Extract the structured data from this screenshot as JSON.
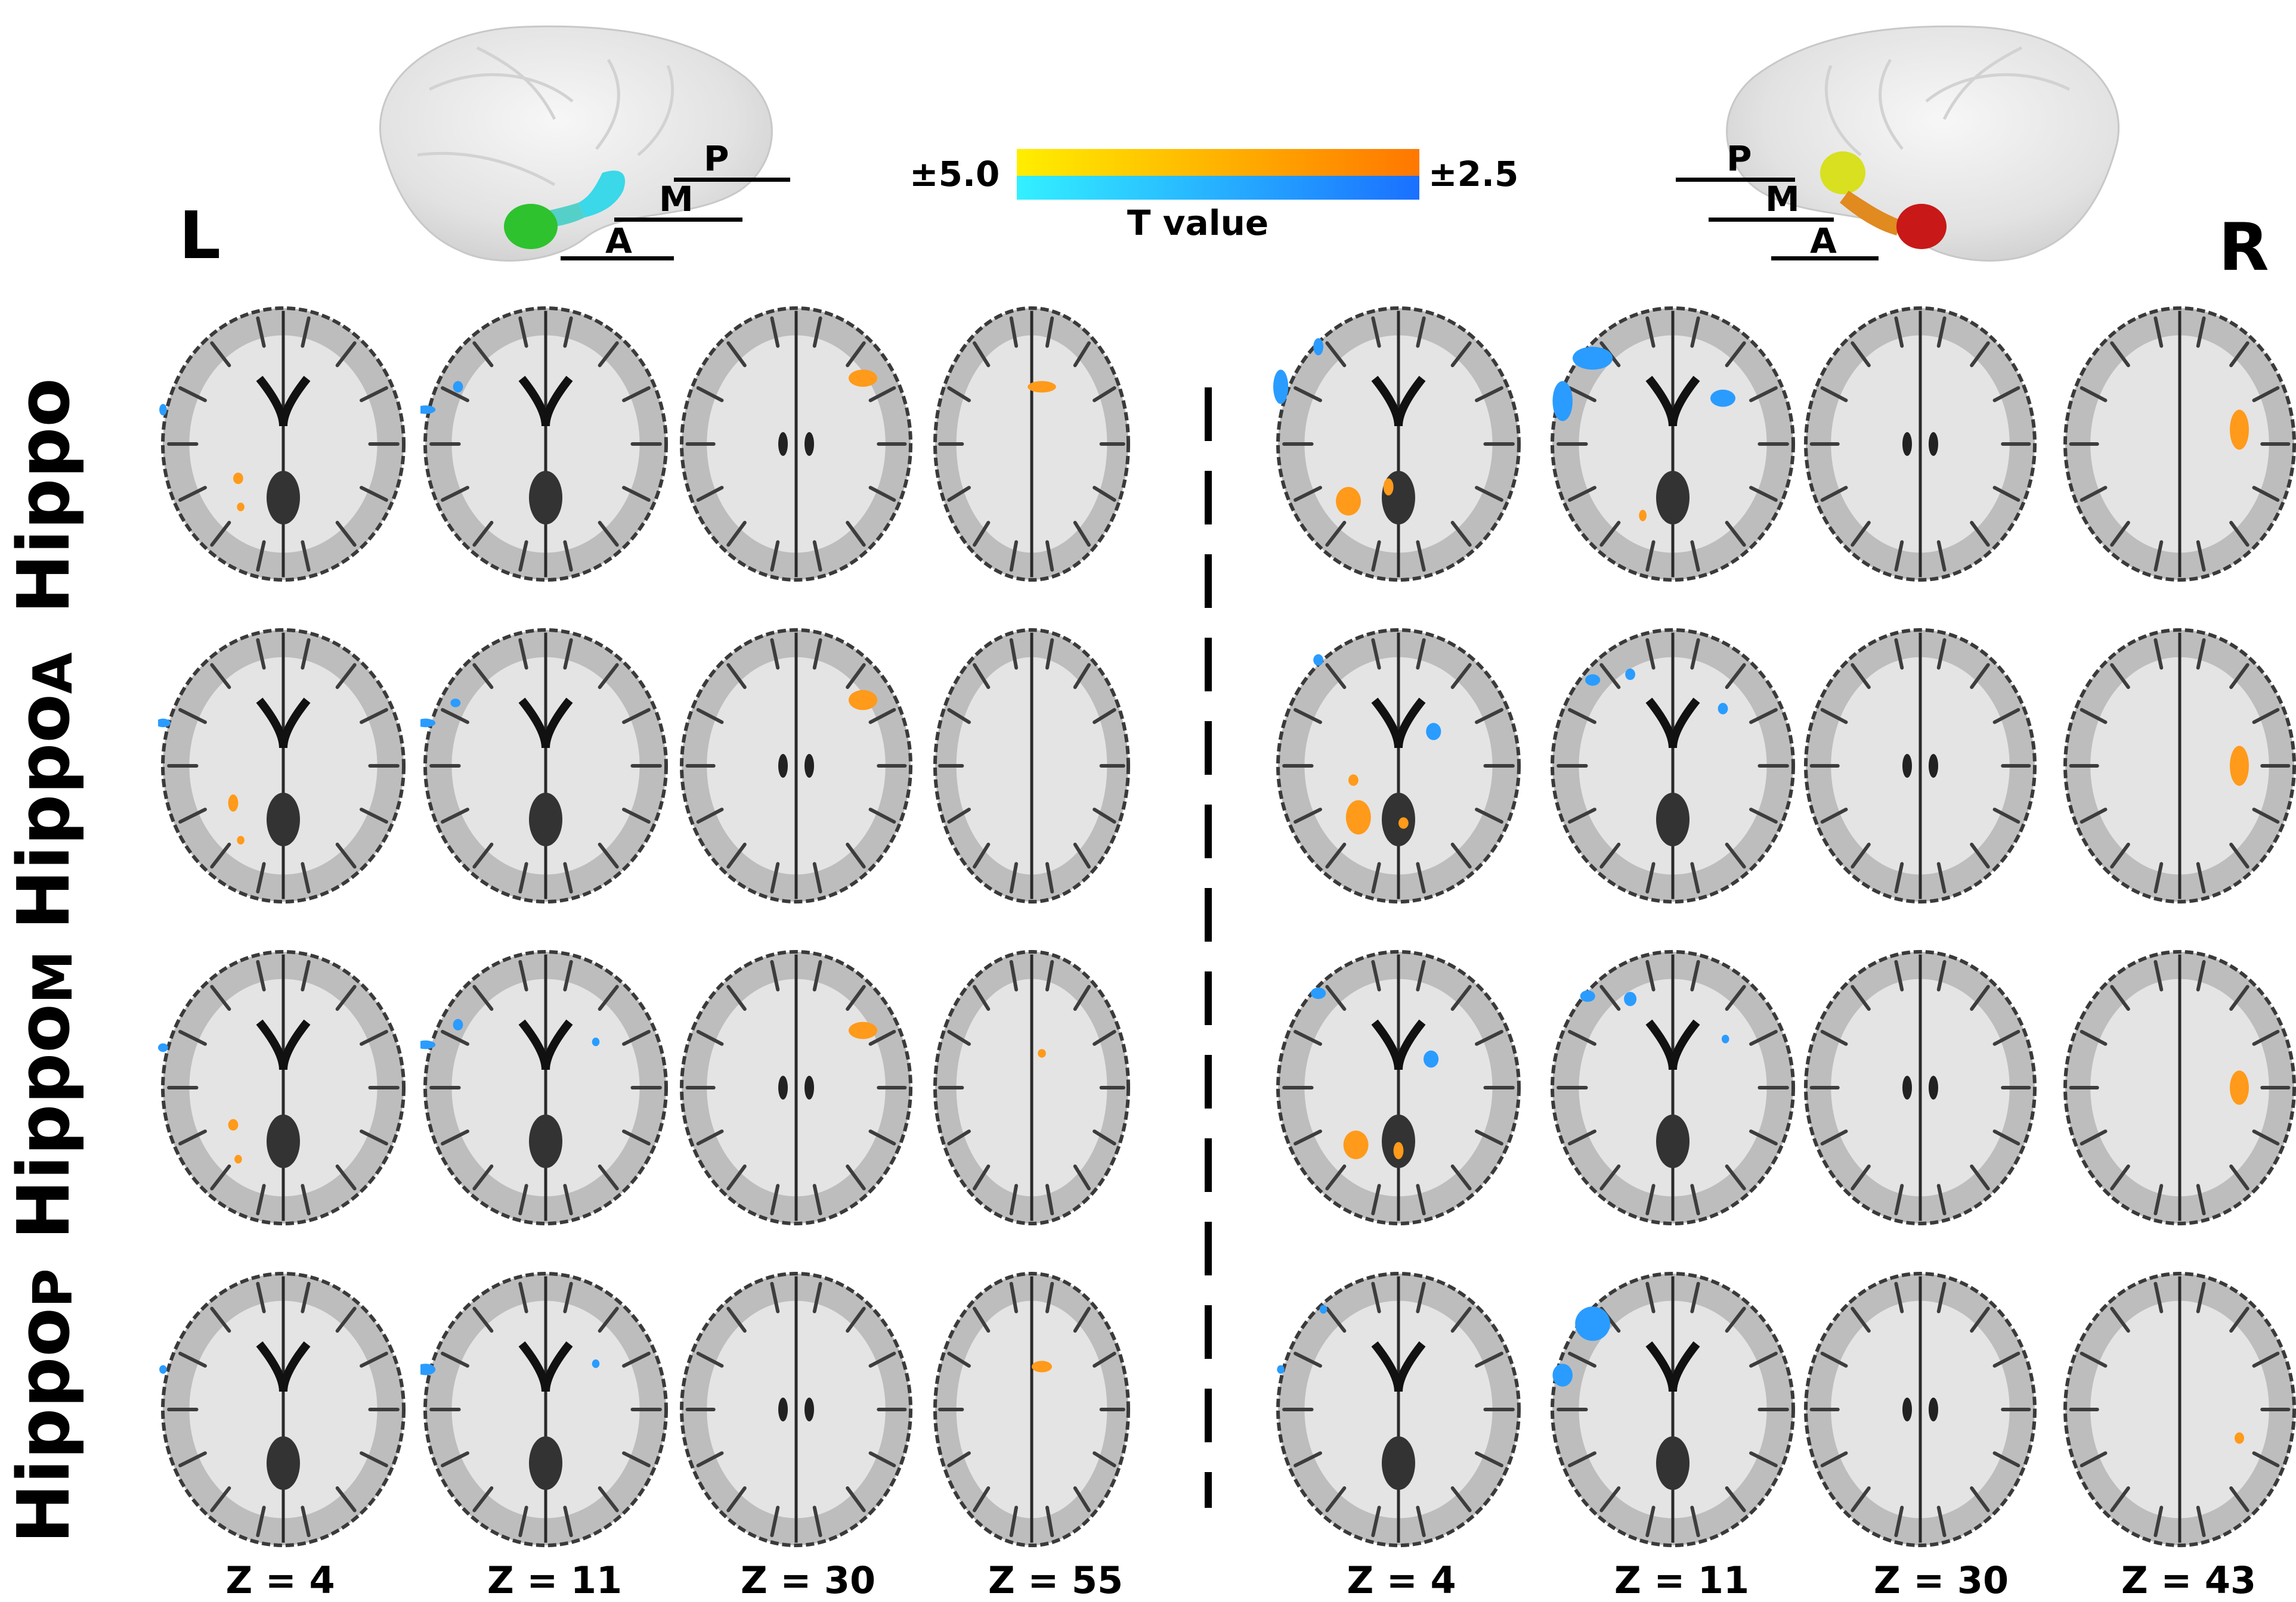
{
  "sides": {
    "left": "L",
    "right": "R"
  },
  "colorbar": {
    "max_label": "±5.0",
    "min_label": "±2.5",
    "title": "T value",
    "warm_start": "#ffee00",
    "warm_end": "#ff7700",
    "cool_start": "#33f0ff",
    "cool_end": "#1a70ff"
  },
  "segments": {
    "p": "P",
    "m": "M",
    "a": "A"
  },
  "rows": [
    {
      "label": "Hippo",
      "sub": ""
    },
    {
      "label": "Hippo",
      "sub": "A"
    },
    {
      "label": "Hippo",
      "sub": "M"
    },
    {
      "label": "Hippo",
      "sub": "P"
    }
  ],
  "z_left": [
    "Z = 4",
    "Z = 11",
    "Z = 30",
    "Z = 55"
  ],
  "z_right": [
    "Z = 4",
    "Z = 11",
    "Z = 30",
    "Z = 43"
  ],
  "colors": {
    "orange": "#ff9a1a",
    "blue": "#2a9cff",
    "green": "#2ec22e",
    "cyan": "#3ad8e8",
    "yellow": "#d8e020",
    "red": "#c81818"
  }
}
